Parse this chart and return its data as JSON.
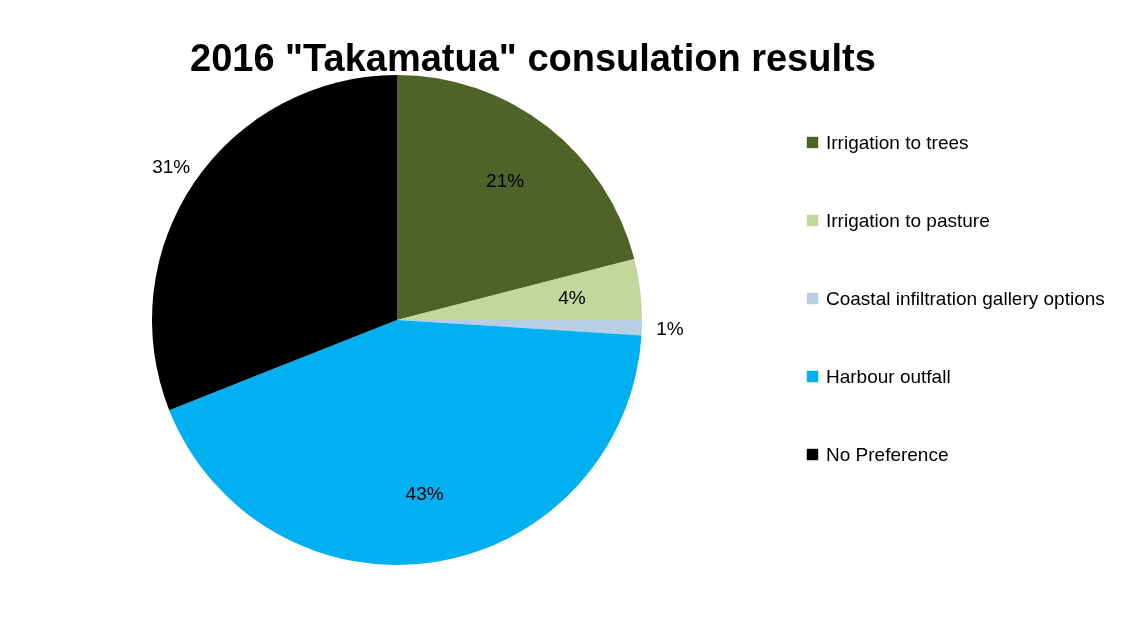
{
  "chart_data": {
    "type": "pie",
    "title": "2016 \"Takamatua\" consulation results",
    "categories": [
      "Irrigation to trees",
      "Irrigation to pasture",
      "Coastal infiltration gallery options",
      "Harbour outfall",
      "No Preference"
    ],
    "values": [
      21,
      4,
      1,
      43,
      31
    ],
    "value_labels": [
      "21%",
      "4%",
      "1%",
      "43%",
      "31%"
    ],
    "colors": [
      "#4f6228",
      "#c3d69b",
      "#b9cde5",
      "#00b0f0",
      "#000000"
    ],
    "legend": "right"
  }
}
